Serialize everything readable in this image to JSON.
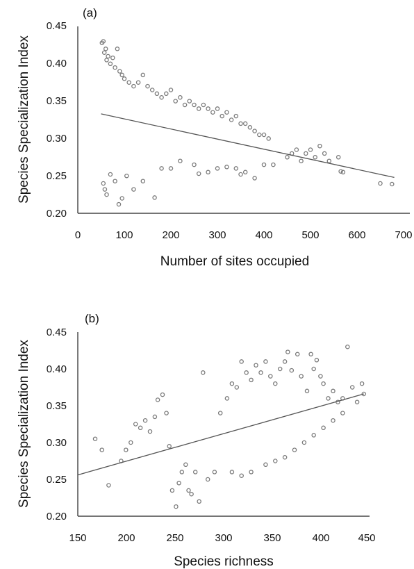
{
  "figure": {
    "panels": [
      "(a)",
      "(b)"
    ]
  },
  "style": {
    "point_color": "#7a7a7a",
    "trend_color": "#555555",
    "axis_color": "#222222"
  },
  "chart_data": [
    {
      "type": "scatter",
      "panel_label": "(a)",
      "title": "",
      "xlabel": "Number of sites occupied",
      "ylabel": "Species Specialization Index",
      "xlim": [
        0,
        700
      ],
      "ylim": [
        0.2,
        0.45
      ],
      "xticks": [
        "0",
        "100",
        "200",
        "300",
        "400",
        "500",
        "600",
        "700"
      ],
      "yticks": [
        "0.20",
        "0.25",
        "0.30",
        "0.35",
        "0.40",
        "0.45"
      ],
      "grid": false,
      "trend_line": {
        "x": [
          50,
          680
        ],
        "y": [
          0.333,
          0.248
        ]
      },
      "points": [
        [
          52,
          0.428
        ],
        [
          55,
          0.43
        ],
        [
          57,
          0.415
        ],
        [
          60,
          0.42
        ],
        [
          62,
          0.405
        ],
        [
          65,
          0.41
        ],
        [
          70,
          0.4
        ],
        [
          75,
          0.408
        ],
        [
          80,
          0.395
        ],
        [
          85,
          0.42
        ],
        [
          90,
          0.39
        ],
        [
          95,
          0.385
        ],
        [
          100,
          0.38
        ],
        [
          110,
          0.375
        ],
        [
          120,
          0.37
        ],
        [
          130,
          0.375
        ],
        [
          140,
          0.385
        ],
        [
          150,
          0.37
        ],
        [
          160,
          0.365
        ],
        [
          170,
          0.36
        ],
        [
          180,
          0.355
        ],
        [
          190,
          0.36
        ],
        [
          200,
          0.365
        ],
        [
          210,
          0.35
        ],
        [
          220,
          0.355
        ],
        [
          230,
          0.345
        ],
        [
          240,
          0.35
        ],
        [
          250,
          0.345
        ],
        [
          260,
          0.34
        ],
        [
          270,
          0.345
        ],
        [
          280,
          0.34
        ],
        [
          290,
          0.335
        ],
        [
          300,
          0.34
        ],
        [
          310,
          0.33
        ],
        [
          320,
          0.335
        ],
        [
          330,
          0.325
        ],
        [
          340,
          0.33
        ],
        [
          350,
          0.32
        ],
        [
          360,
          0.32
        ],
        [
          370,
          0.315
        ],
        [
          380,
          0.31
        ],
        [
          390,
          0.305
        ],
        [
          400,
          0.305
        ],
        [
          410,
          0.3
        ],
        [
          55,
          0.24
        ],
        [
          58,
          0.232
        ],
        [
          62,
          0.225
        ],
        [
          70,
          0.252
        ],
        [
          80,
          0.243
        ],
        [
          88,
          0.212
        ],
        [
          95,
          0.22
        ],
        [
          105,
          0.25
        ],
        [
          120,
          0.232
        ],
        [
          140,
          0.243
        ],
        [
          165,
          0.221
        ],
        [
          180,
          0.26
        ],
        [
          200,
          0.26
        ],
        [
          220,
          0.27
        ],
        [
          250,
          0.265
        ],
        [
          260,
          0.253
        ],
        [
          280,
          0.255
        ],
        [
          300,
          0.26
        ],
        [
          320,
          0.262
        ],
        [
          340,
          0.26
        ],
        [
          350,
          0.252
        ],
        [
          360,
          0.255
        ],
        [
          380,
          0.247
        ],
        [
          400,
          0.265
        ],
        [
          420,
          0.265
        ],
        [
          450,
          0.275
        ],
        [
          460,
          0.28
        ],
        [
          470,
          0.285
        ],
        [
          480,
          0.27
        ],
        [
          490,
          0.28
        ],
        [
          500,
          0.285
        ],
        [
          510,
          0.275
        ],
        [
          520,
          0.29
        ],
        [
          530,
          0.28
        ],
        [
          540,
          0.27
        ],
        [
          560,
          0.275
        ],
        [
          565,
          0.256
        ],
        [
          570,
          0.255
        ],
        [
          650,
          0.24
        ],
        [
          675,
          0.239
        ]
      ]
    },
    {
      "type": "scatter",
      "panel_label": "(b)",
      "title": "",
      "xlabel": "Species richness",
      "ylabel": "Species Specialization Index",
      "xlim": [
        150,
        450
      ],
      "ylim": [
        0.2,
        0.45
      ],
      "xticks": [
        "150",
        "200",
        "250",
        "300",
        "350",
        "400",
        "450"
      ],
      "yticks": [
        "0.20",
        "0.25",
        "0.30",
        "0.35",
        "0.40",
        "0.45"
      ],
      "grid": false,
      "trend_line": {
        "x": [
          150,
          447
        ],
        "y": [
          0.256,
          0.366
        ]
      },
      "points": [
        [
          168,
          0.305
        ],
        [
          175,
          0.29
        ],
        [
          182,
          0.242
        ],
        [
          195,
          0.275
        ],
        [
          200,
          0.29
        ],
        [
          205,
          0.3
        ],
        [
          210,
          0.325
        ],
        [
          215,
          0.32
        ],
        [
          220,
          0.33
        ],
        [
          225,
          0.315
        ],
        [
          230,
          0.335
        ],
        [
          233,
          0.358
        ],
        [
          238,
          0.365
        ],
        [
          242,
          0.34
        ],
        [
          245,
          0.295
        ],
        [
          248,
          0.235
        ],
        [
          252,
          0.213
        ],
        [
          255,
          0.245
        ],
        [
          258,
          0.26
        ],
        [
          262,
          0.27
        ],
        [
          265,
          0.235
        ],
        [
          268,
          0.23
        ],
        [
          272,
          0.26
        ],
        [
          276,
          0.22
        ],
        [
          280,
          0.395
        ],
        [
          285,
          0.25
        ],
        [
          292,
          0.26
        ],
        [
          298,
          0.34
        ],
        [
          305,
          0.36
        ],
        [
          310,
          0.38
        ],
        [
          315,
          0.375
        ],
        [
          320,
          0.41
        ],
        [
          325,
          0.395
        ],
        [
          330,
          0.385
        ],
        [
          335,
          0.405
        ],
        [
          340,
          0.395
        ],
        [
          345,
          0.41
        ],
        [
          350,
          0.39
        ],
        [
          355,
          0.38
        ],
        [
          360,
          0.4
        ],
        [
          365,
          0.41
        ],
        [
          368,
          0.423
        ],
        [
          372,
          0.398
        ],
        [
          378,
          0.42
        ],
        [
          382,
          0.39
        ],
        [
          388,
          0.37
        ],
        [
          392,
          0.42
        ],
        [
          395,
          0.4
        ],
        [
          398,
          0.412
        ],
        [
          402,
          0.39
        ],
        [
          405,
          0.38
        ],
        [
          410,
          0.36
        ],
        [
          415,
          0.37
        ],
        [
          420,
          0.355
        ],
        [
          425,
          0.36
        ],
        [
          430,
          0.43
        ],
        [
          435,
          0.375
        ],
        [
          440,
          0.355
        ],
        [
          445,
          0.38
        ],
        [
          447,
          0.366
        ],
        [
          310,
          0.26
        ],
        [
          320,
          0.255
        ],
        [
          330,
          0.26
        ],
        [
          345,
          0.27
        ],
        [
          355,
          0.275
        ],
        [
          365,
          0.28
        ],
        [
          375,
          0.29
        ],
        [
          385,
          0.3
        ],
        [
          395,
          0.31
        ],
        [
          405,
          0.32
        ],
        [
          415,
          0.33
        ],
        [
          425,
          0.34
        ]
      ]
    }
  ]
}
